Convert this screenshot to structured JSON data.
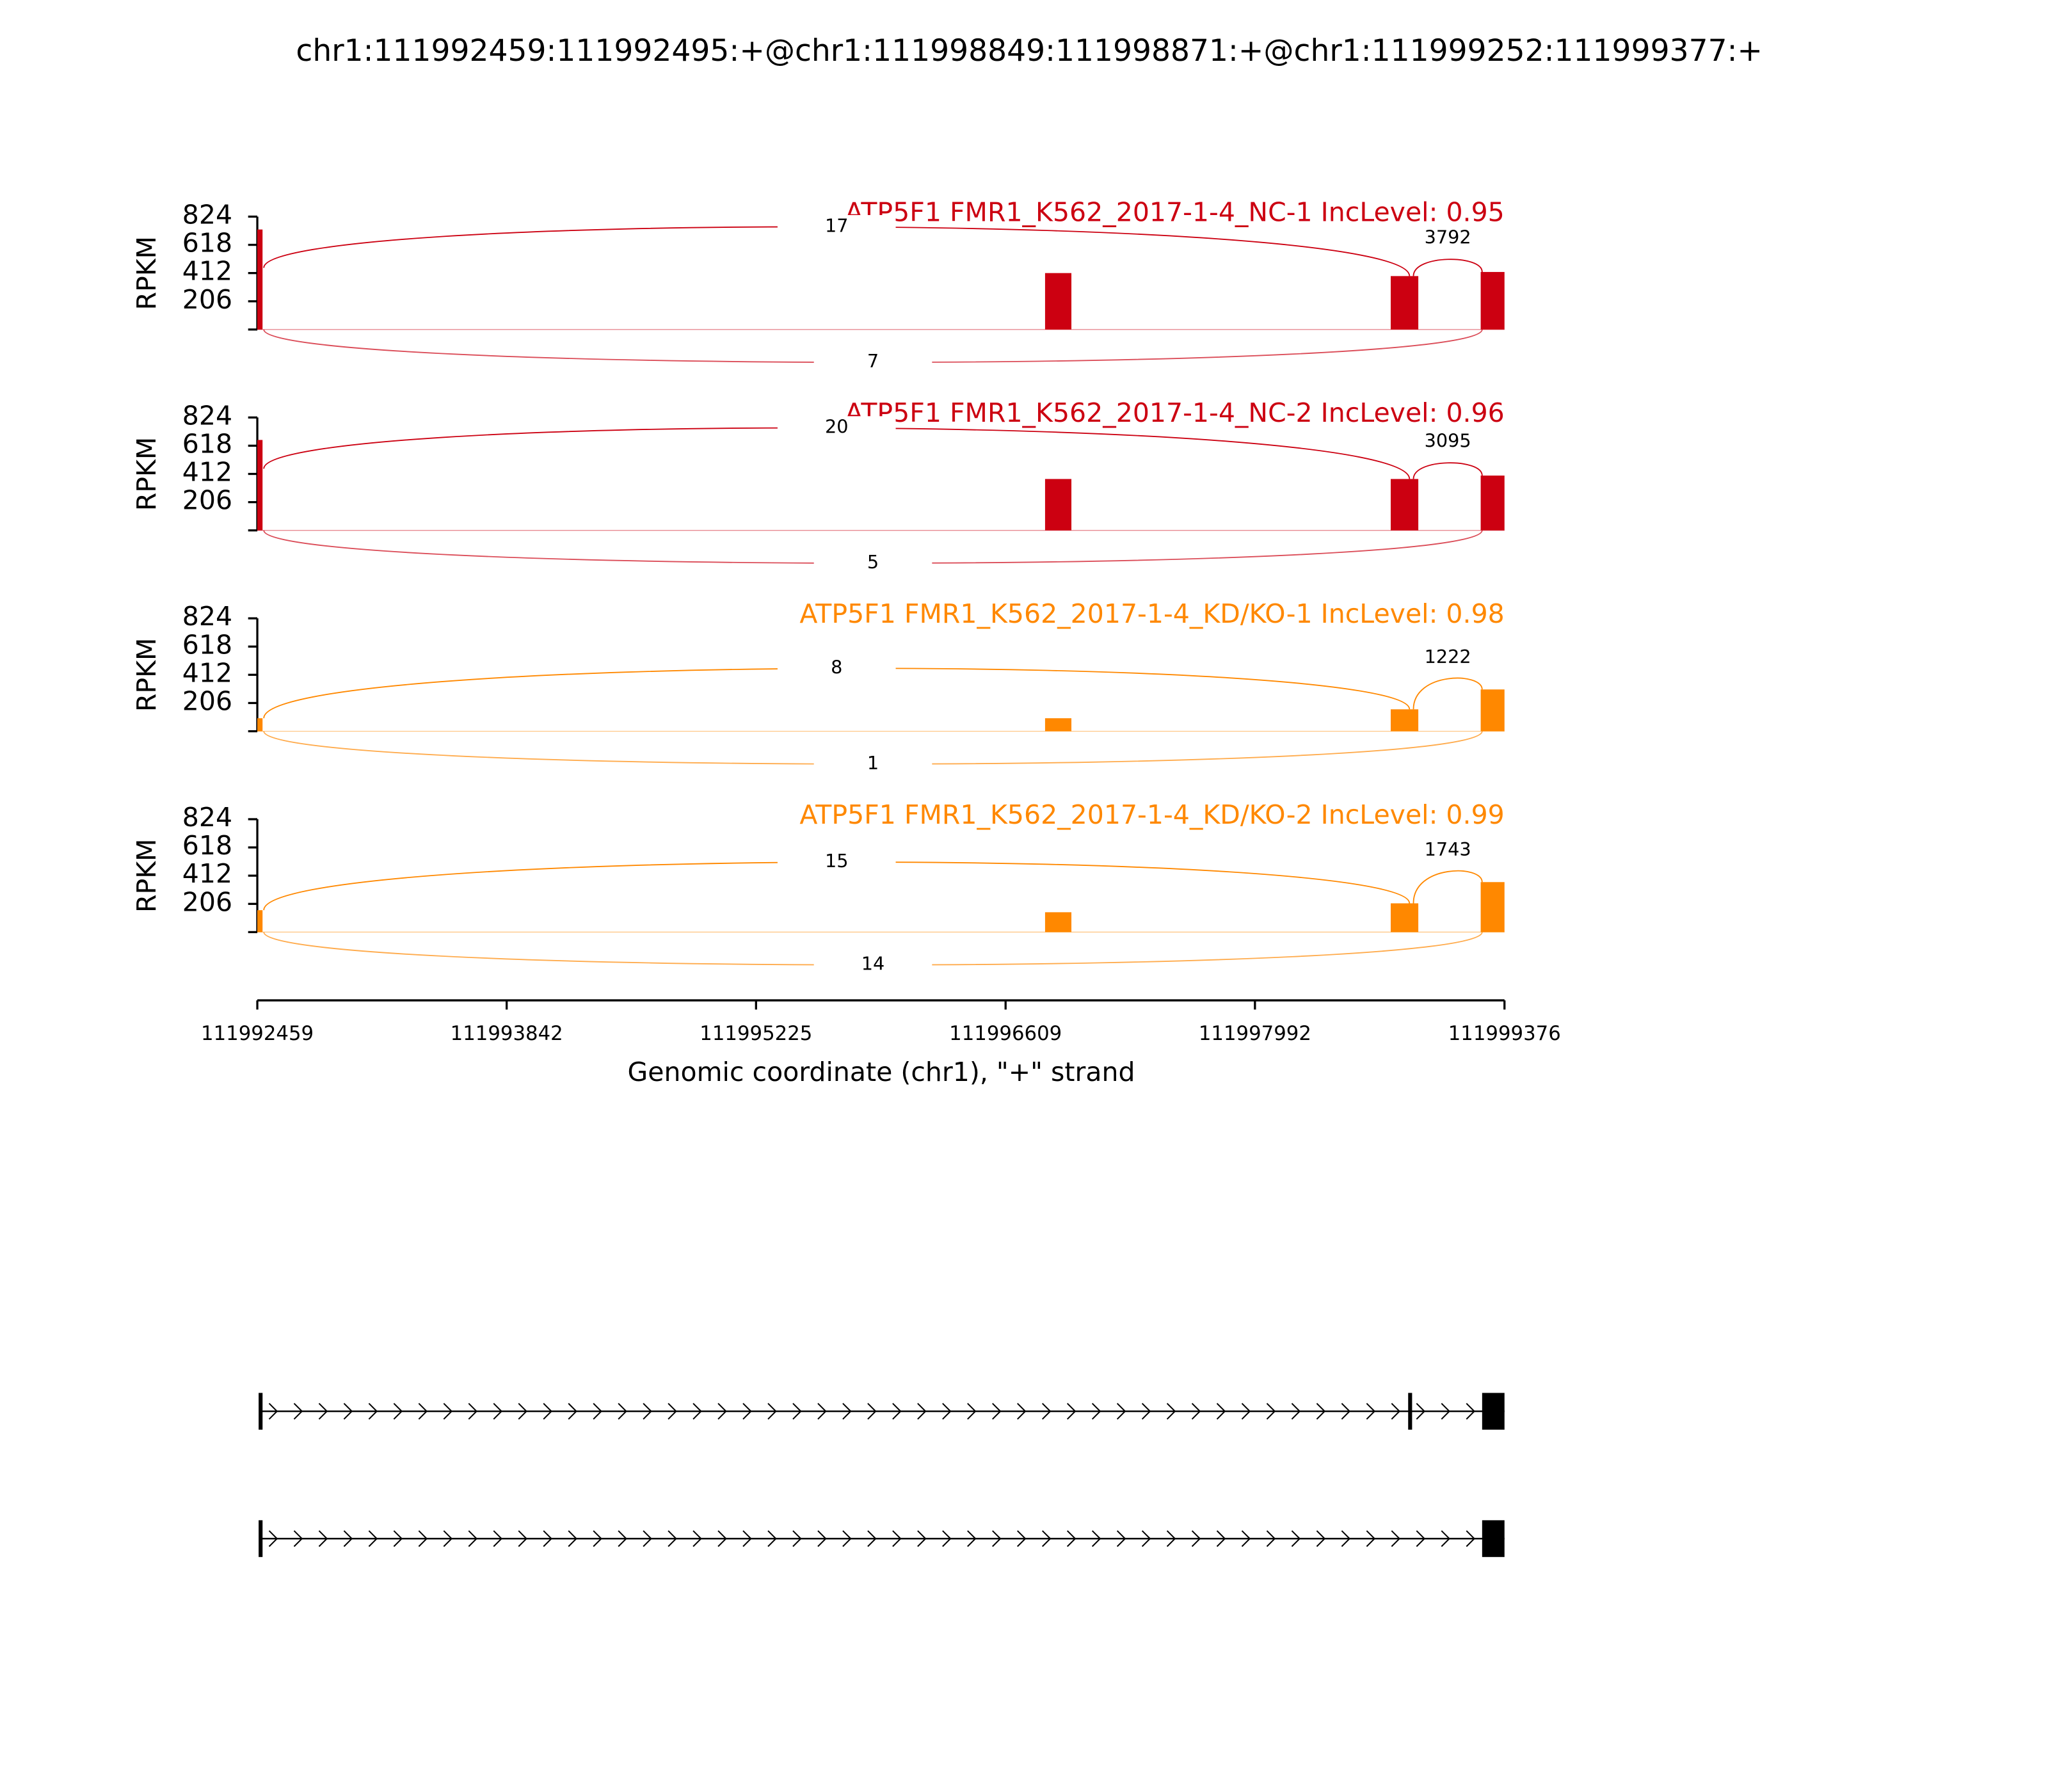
{
  "chart_data": {
    "type": "sashimi",
    "title": "chr1:111992459:111992495:+@chr1:111998849:111998871:+@chr1:111999252:111999377:+",
    "x_label": "Genomic coordinate (chr1), \"+\" strand",
    "y_label": "RPKM",
    "xlim": [
      111992459,
      111999376
    ],
    "xticks": [
      111992459,
      111993842,
      111995225,
      111996609,
      111997992,
      111999376
    ],
    "ylim": [
      0,
      824
    ],
    "yticks": [
      206,
      412,
      618,
      824
    ],
    "tracks": [
      {
        "name": "ATP5F1 FMR1_K562_2017-1-4_NC-1 IncLevel: 0.95",
        "color": "#cc0011",
        "coverage": [
          {
            "start": 111992459,
            "end": 111992488,
            "value": 730
          },
          {
            "start": 111996828,
            "end": 111996974,
            "value": 412
          },
          {
            "start": 111998745,
            "end": 111998898,
            "value": 390
          },
          {
            "start": 111999244,
            "end": 111999376,
            "value": 420
          }
        ],
        "junctions": [
          {
            "start": 111992495,
            "end": 111998849,
            "count": 17,
            "side": "above"
          },
          {
            "start": 111998871,
            "end": 111999252,
            "count": 3792,
            "side": "above"
          },
          {
            "start": 111992495,
            "end": 111999252,
            "count": 7,
            "side": "below"
          }
        ]
      },
      {
        "name": "ATP5F1 FMR1_K562_2017-1-4_NC-2 IncLevel: 0.96",
        "color": "#cc0011",
        "coverage": [
          {
            "start": 111992459,
            "end": 111992488,
            "value": 660
          },
          {
            "start": 111996828,
            "end": 111996974,
            "value": 375
          },
          {
            "start": 111998745,
            "end": 111998898,
            "value": 375
          },
          {
            "start": 111999244,
            "end": 111999376,
            "value": 400
          }
        ],
        "junctions": [
          {
            "start": 111992495,
            "end": 111998849,
            "count": 20,
            "side": "above"
          },
          {
            "start": 111998871,
            "end": 111999252,
            "count": 3095,
            "side": "above"
          },
          {
            "start": 111992495,
            "end": 111999252,
            "count": 5,
            "side": "below"
          }
        ]
      },
      {
        "name": "ATP5F1 FMR1_K562_2017-1-4_KD/KO-1 IncLevel: 0.98",
        "color": "#ff8800",
        "coverage": [
          {
            "start": 111992459,
            "end": 111992488,
            "value": 95
          },
          {
            "start": 111996828,
            "end": 111996974,
            "value": 95
          },
          {
            "start": 111998745,
            "end": 111998898,
            "value": 160
          },
          {
            "start": 111999244,
            "end": 111999376,
            "value": 305
          }
        ],
        "junctions": [
          {
            "start": 111992495,
            "end": 111998849,
            "count": 8,
            "side": "above"
          },
          {
            "start": 111998871,
            "end": 111999252,
            "count": 1222,
            "side": "above"
          },
          {
            "start": 111992495,
            "end": 111999252,
            "count": 1,
            "side": "below"
          }
        ]
      },
      {
        "name": "ATP5F1 FMR1_K562_2017-1-4_KD/KO-2 IncLevel: 0.99",
        "color": "#ff8800",
        "coverage": [
          {
            "start": 111992459,
            "end": 111992488,
            "value": 160
          },
          {
            "start": 111996828,
            "end": 111996974,
            "value": 145
          },
          {
            "start": 111998745,
            "end": 111998898,
            "value": 210
          },
          {
            "start": 111999244,
            "end": 111999376,
            "value": 365
          }
        ],
        "junctions": [
          {
            "start": 111992495,
            "end": 111998849,
            "count": 15,
            "side": "above"
          },
          {
            "start": 111998871,
            "end": 111999252,
            "count": 1743,
            "side": "above"
          },
          {
            "start": 111992495,
            "end": 111999252,
            "count": 14,
            "side": "below"
          }
        ]
      }
    ],
    "transcripts": [
      {
        "exons": [
          [
            111992459,
            111992495
          ],
          [
            111998849,
            111998871
          ],
          [
            111999252,
            111999376
          ]
        ]
      },
      {
        "exons": [
          [
            111992459,
            111992495
          ],
          [
            111999252,
            111999376
          ]
        ]
      }
    ]
  }
}
